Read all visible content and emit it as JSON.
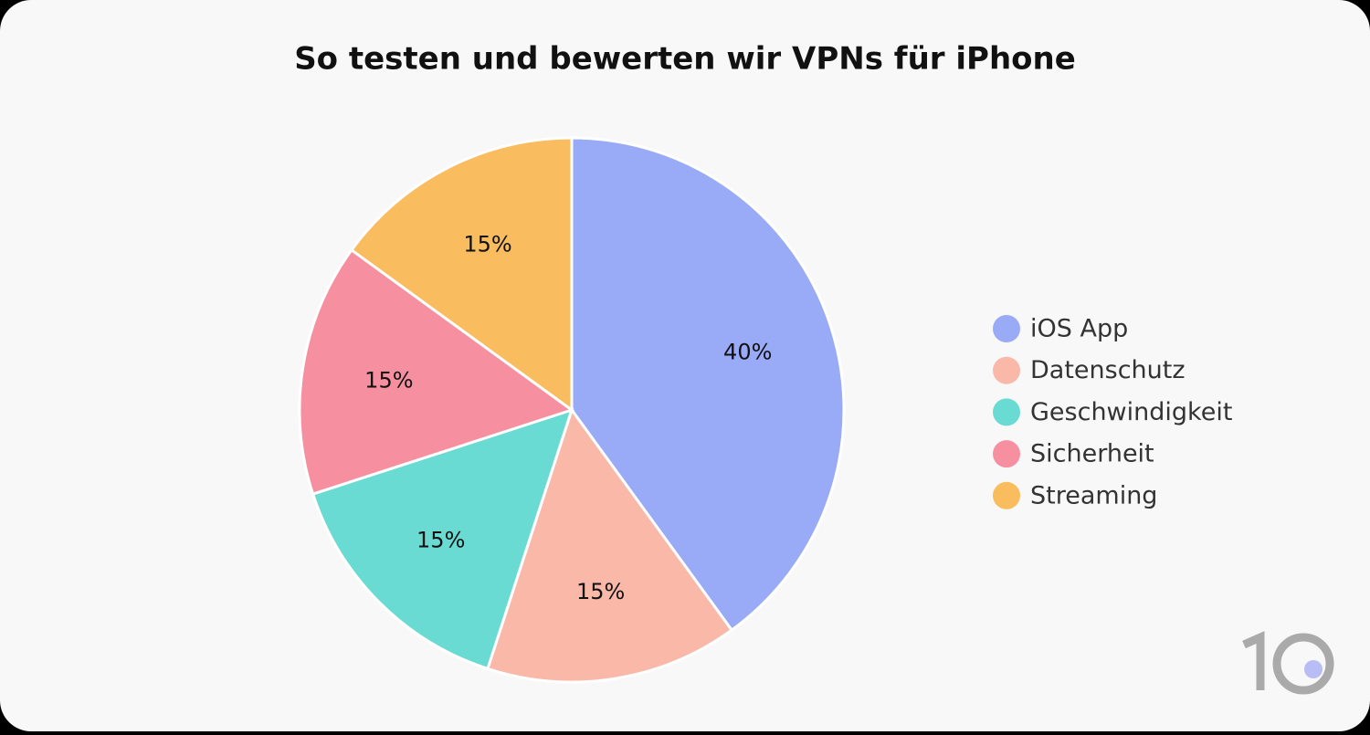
{
  "chart_data": {
    "type": "pie",
    "title": "So testen und bewerten wir VPNs für iPhone",
    "categories": [
      "iOS App",
      "Datenschutz",
      "Geschwindigkeit",
      "Sicherheit",
      "Streaming"
    ],
    "values": [
      40,
      15,
      15,
      15,
      15
    ],
    "value_labels": [
      "40%",
      "15%",
      "15%",
      "15%",
      "15%"
    ],
    "colors": [
      "#99aaf6",
      "#f9b8a8",
      "#6adbd3",
      "#f68fa0",
      "#f9bc5e"
    ],
    "legend": "right"
  }
}
